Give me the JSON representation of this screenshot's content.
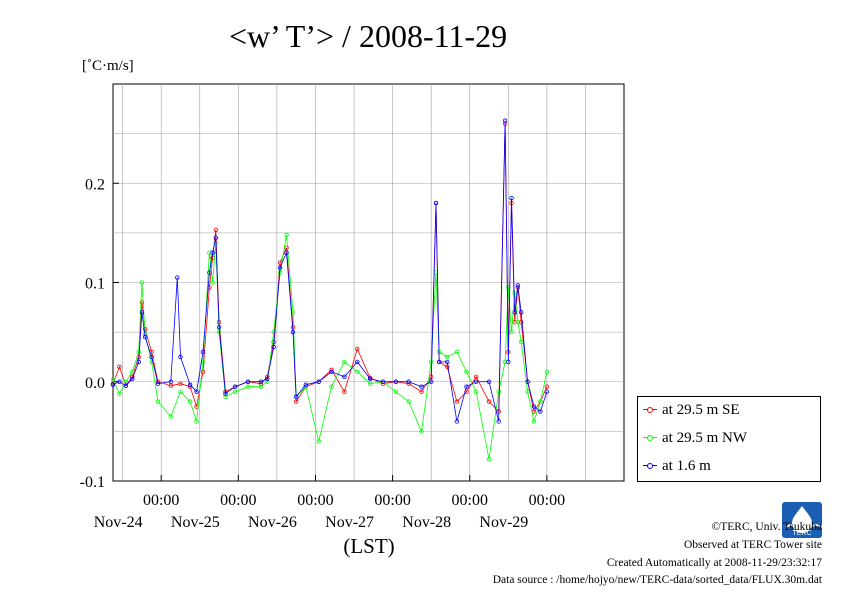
{
  "chart_data": {
    "type": "line",
    "title": "<w’ T’> / 2008-11-29",
    "ylabel": "[˚C·m/s]",
    "xlabel": "(LST)",
    "ylim": [
      -0.1,
      0.3
    ],
    "xlim": [
      "2008-11-23 09:00",
      "2008-11-30 00:00"
    ],
    "yticks": [
      "0.2",
      "0.1",
      "0.0",
      "-0.1"
    ],
    "xticks": [
      {
        "time": "00:00",
        "date": "Nov-24"
      },
      {
        "time": "00:00",
        "date": "Nov-25"
      },
      {
        "time": "00:00",
        "date": "Nov-26"
      },
      {
        "time": "00:00",
        "date": "Nov-27"
      },
      {
        "time": "00:00",
        "date": "Nov-28"
      },
      {
        "time": "00:00",
        "date": "Nov-29"
      }
    ],
    "grid": true,
    "legend_position": "right-bottom",
    "series": [
      {
        "name": "at 29.5 m SE",
        "color": "#ff0000",
        "points": [
          [
            "2008-11-23 09:00",
            -0.002
          ],
          [
            "2008-11-23 11:00",
            0.015
          ],
          [
            "2008-11-23 13:00",
            -0.004
          ],
          [
            "2008-11-23 15:00",
            0.005
          ],
          [
            "2008-11-23 17:00",
            0.025
          ],
          [
            "2008-11-23 18:00",
            0.08
          ],
          [
            "2008-11-23 19:00",
            0.053
          ],
          [
            "2008-11-23 21:00",
            0.03
          ],
          [
            "2008-11-23 23:00",
            0.0
          ],
          [
            "2008-11-24 03:00",
            -0.004
          ],
          [
            "2008-11-24 06:00",
            -0.002
          ],
          [
            "2008-11-24 09:00",
            -0.005
          ],
          [
            "2008-11-24 11:00",
            -0.025
          ],
          [
            "2008-11-24 13:00",
            0.01
          ],
          [
            "2008-11-24 15:00",
            0.095
          ],
          [
            "2008-11-24 16:00",
            0.125
          ],
          [
            "2008-11-24 17:00",
            0.153
          ],
          [
            "2008-11-24 18:00",
            0.06
          ],
          [
            "2008-11-24 20:00",
            -0.01
          ],
          [
            "2008-11-24 23:00",
            -0.005
          ],
          [
            "2008-11-25 03:00",
            0.0
          ],
          [
            "2008-11-25 07:00",
            -0.002
          ],
          [
            "2008-11-25 09:00",
            0.005
          ],
          [
            "2008-11-25 11:00",
            0.04
          ],
          [
            "2008-11-25 13:00",
            0.12
          ],
          [
            "2008-11-25 15:00",
            0.135
          ],
          [
            "2008-11-25 17:00",
            0.055
          ],
          [
            "2008-11-25 18:00",
            -0.02
          ],
          [
            "2008-11-25 21:00",
            -0.005
          ],
          [
            "2008-11-26 01:00",
            0.0
          ],
          [
            "2008-11-26 05:00",
            0.012
          ],
          [
            "2008-11-26 09:00",
            -0.01
          ],
          [
            "2008-11-26 13:00",
            0.033
          ],
          [
            "2008-11-26 17:00",
            0.004
          ],
          [
            "2008-11-26 21:00",
            -0.002
          ],
          [
            "2008-11-27 01:00",
            0.0
          ],
          [
            "2008-11-27 05:00",
            -0.002
          ],
          [
            "2008-11-27 09:00",
            -0.01
          ],
          [
            "2008-11-27 12:00",
            0.005
          ],
          [
            "2008-11-27 13:30",
            0.18
          ],
          [
            "2008-11-27 14:30",
            0.02
          ],
          [
            "2008-11-27 17:00",
            0.015
          ],
          [
            "2008-11-27 20:00",
            -0.02
          ],
          [
            "2008-11-27 23:00",
            -0.01
          ],
          [
            "2008-11-28 02:00",
            0.005
          ],
          [
            "2008-11-28 06:00",
            -0.02
          ],
          [
            "2008-11-28 09:00",
            -0.03
          ],
          [
            "2008-11-28 11:00",
            0.26
          ],
          [
            "2008-11-28 12:00",
            0.03
          ],
          [
            "2008-11-28 13:00",
            0.18
          ],
          [
            "2008-11-28 14:00",
            0.06
          ],
          [
            "2008-11-28 15:00",
            0.095
          ],
          [
            "2008-11-28 16:00",
            0.06
          ],
          [
            "2008-11-28 18:00",
            0.0
          ],
          [
            "2008-11-28 20:00",
            -0.03
          ],
          [
            "2008-11-28 22:00",
            -0.02
          ],
          [
            "2008-11-29 00:00",
            -0.005
          ]
        ]
      },
      {
        "name": "at 29.5 m NW",
        "color": "#00ff00",
        "points": [
          [
            "2008-11-23 09:00",
            0.002
          ],
          [
            "2008-11-23 11:00",
            -0.012
          ],
          [
            "2008-11-23 13:00",
            0.0
          ],
          [
            "2008-11-23 15:00",
            0.01
          ],
          [
            "2008-11-23 17:00",
            0.03
          ],
          [
            "2008-11-23 18:00",
            0.1
          ],
          [
            "2008-11-23 19:00",
            0.048
          ],
          [
            "2008-11-23 21:00",
            0.02
          ],
          [
            "2008-11-23 23:00",
            -0.02
          ],
          [
            "2008-11-24 03:00",
            -0.035
          ],
          [
            "2008-11-24 06:00",
            -0.01
          ],
          [
            "2008-11-24 09:00",
            -0.02
          ],
          [
            "2008-11-24 11:00",
            -0.04
          ],
          [
            "2008-11-24 13:00",
            0.02
          ],
          [
            "2008-11-24 15:00",
            0.13
          ],
          [
            "2008-11-24 16:00",
            0.1
          ],
          [
            "2008-11-24 17:00",
            0.14
          ],
          [
            "2008-11-24 18:00",
            0.05
          ],
          [
            "2008-11-24 20:00",
            -0.015
          ],
          [
            "2008-11-24 23:00",
            -0.01
          ],
          [
            "2008-11-25 03:00",
            -0.005
          ],
          [
            "2008-11-25 07:00",
            -0.005
          ],
          [
            "2008-11-25 09:00",
            0.0
          ],
          [
            "2008-11-25 11:00",
            0.05
          ],
          [
            "2008-11-25 13:00",
            0.11
          ],
          [
            "2008-11-25 15:00",
            0.148
          ],
          [
            "2008-11-25 17:00",
            0.07
          ],
          [
            "2008-11-25 18:00",
            -0.015
          ],
          [
            "2008-11-25 21:00",
            -0.005
          ],
          [
            "2008-11-26 01:00",
            -0.06
          ],
          [
            "2008-11-26 05:00",
            -0.005
          ],
          [
            "2008-11-26 09:00",
            0.02
          ],
          [
            "2008-11-26 13:00",
            0.01
          ],
          [
            "2008-11-26 17:00",
            -0.002
          ],
          [
            "2008-11-26 21:00",
            0.0
          ],
          [
            "2008-11-27 01:00",
            -0.01
          ],
          [
            "2008-11-27 05:00",
            -0.02
          ],
          [
            "2008-11-27 09:00",
            -0.05
          ],
          [
            "2008-11-27 12:00",
            0.02
          ],
          [
            "2008-11-27 13:30",
            0.11
          ],
          [
            "2008-11-27 14:30",
            0.03
          ],
          [
            "2008-11-27 17:00",
            0.025
          ],
          [
            "2008-11-27 20:00",
            0.03
          ],
          [
            "2008-11-27 23:00",
            0.01
          ],
          [
            "2008-11-28 02:00",
            -0.01
          ],
          [
            "2008-11-28 06:00",
            -0.078
          ],
          [
            "2008-11-28 09:00",
            -0.01
          ],
          [
            "2008-11-28 11:00",
            0.02
          ],
          [
            "2008-11-28 12:00",
            0.095
          ],
          [
            "2008-11-28 13:00",
            0.05
          ],
          [
            "2008-11-28 14:00",
            0.09
          ],
          [
            "2008-11-28 15:00",
            0.06
          ],
          [
            "2008-11-28 16:00",
            0.04
          ],
          [
            "2008-11-28 18:00",
            -0.01
          ],
          [
            "2008-11-28 20:00",
            -0.04
          ],
          [
            "2008-11-28 22:00",
            -0.02
          ],
          [
            "2008-11-29 00:00",
            0.01
          ]
        ]
      },
      {
        "name": "at 1.6 m",
        "color": "#0000ff",
        "points": [
          [
            "2008-11-23 09:00",
            -0.003
          ],
          [
            "2008-11-23 11:00",
            0.0
          ],
          [
            "2008-11-23 13:00",
            -0.004
          ],
          [
            "2008-11-23 15:00",
            0.003
          ],
          [
            "2008-11-23 17:00",
            0.02
          ],
          [
            "2008-11-23 18:00",
            0.07
          ],
          [
            "2008-11-23 19:00",
            0.045
          ],
          [
            "2008-11-23 21:00",
            0.025
          ],
          [
            "2008-11-23 23:00",
            -0.002
          ],
          [
            "2008-11-24 03:00",
            0.0
          ],
          [
            "2008-11-24 05:00",
            0.105
          ],
          [
            "2008-11-24 06:00",
            0.025
          ],
          [
            "2008-11-24 09:00",
            -0.003
          ],
          [
            "2008-11-24 11:00",
            -0.01
          ],
          [
            "2008-11-24 13:00",
            0.03
          ],
          [
            "2008-11-24 15:00",
            0.11
          ],
          [
            "2008-11-24 16:00",
            0.13
          ],
          [
            "2008-11-24 17:00",
            0.145
          ],
          [
            "2008-11-24 18:00",
            0.055
          ],
          [
            "2008-11-24 20:00",
            -0.012
          ],
          [
            "2008-11-24 23:00",
            -0.005
          ],
          [
            "2008-11-25 03:00",
            0.0
          ],
          [
            "2008-11-25 07:00",
            0.0
          ],
          [
            "2008-11-25 09:00",
            0.003
          ],
          [
            "2008-11-25 11:00",
            0.035
          ],
          [
            "2008-11-25 13:00",
            0.115
          ],
          [
            "2008-11-25 15:00",
            0.13
          ],
          [
            "2008-11-25 17:00",
            0.05
          ],
          [
            "2008-11-25 18:00",
            -0.015
          ],
          [
            "2008-11-25 21:00",
            -0.003
          ],
          [
            "2008-11-26 01:00",
            0.0
          ],
          [
            "2008-11-26 05:00",
            0.01
          ],
          [
            "2008-11-26 09:00",
            0.005
          ],
          [
            "2008-11-26 13:00",
            0.02
          ],
          [
            "2008-11-26 17:00",
            0.003
          ],
          [
            "2008-11-26 21:00",
            0.0
          ],
          [
            "2008-11-27 01:00",
            0.0
          ],
          [
            "2008-11-27 05:00",
            0.0
          ],
          [
            "2008-11-27 09:00",
            -0.005
          ],
          [
            "2008-11-27 12:00",
            0.0
          ],
          [
            "2008-11-27 13:30",
            0.18
          ],
          [
            "2008-11-27 14:30",
            0.02
          ],
          [
            "2008-11-27 17:00",
            0.02
          ],
          [
            "2008-11-27 20:00",
            -0.04
          ],
          [
            "2008-11-27 23:00",
            -0.005
          ],
          [
            "2008-11-28 02:00",
            0.0
          ],
          [
            "2008-11-28 06:00",
            0.0
          ],
          [
            "2008-11-28 09:00",
            -0.04
          ],
          [
            "2008-11-28 11:00",
            0.263
          ],
          [
            "2008-11-28 12:00",
            0.02
          ],
          [
            "2008-11-28 13:00",
            0.185
          ],
          [
            "2008-11-28 14:00",
            0.07
          ],
          [
            "2008-11-28 15:00",
            0.097
          ],
          [
            "2008-11-28 16:00",
            0.07
          ],
          [
            "2008-11-28 18:00",
            0.0
          ],
          [
            "2008-11-28 20:00",
            -0.025
          ],
          [
            "2008-11-28 22:00",
            -0.03
          ],
          [
            "2008-11-29 00:00",
            -0.01
          ]
        ]
      }
    ]
  },
  "footer": {
    "copyright": "©TERC, Univ. Tsukuba",
    "observed": "Observed at TERC Tower site",
    "created": "Created Automatically at 2008-11-29/23:32:17",
    "source": "Data source : /home/hojyo/new/TERC-data/sorted_data/FLUX.30m.dat",
    "logo_text": "TERC"
  }
}
